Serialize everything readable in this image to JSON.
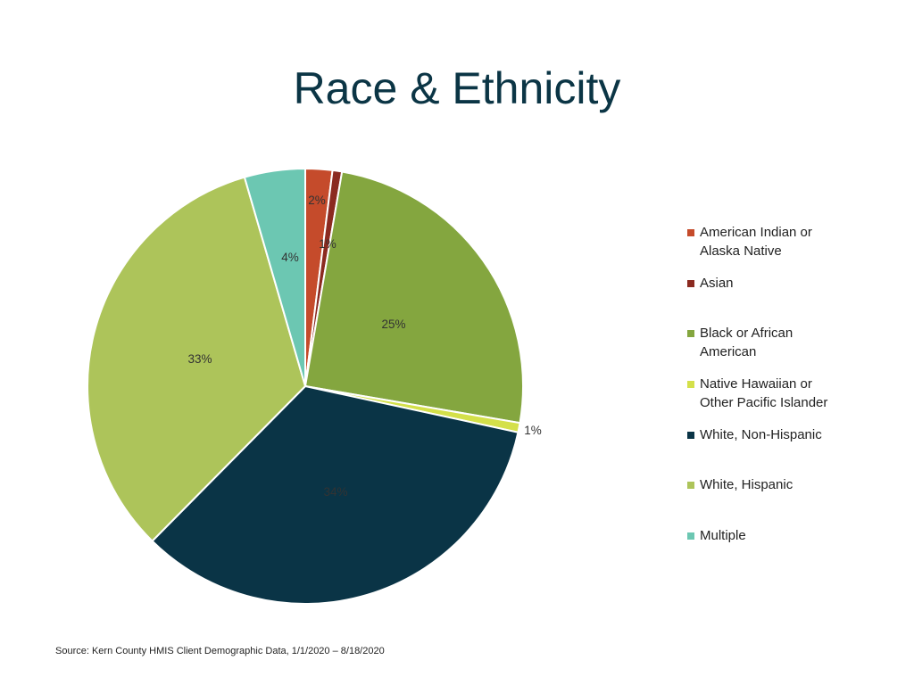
{
  "title": "Race & Ethnicity",
  "source": "Source: Kern County HMIS Client Demographic Data, 1/1/2020 – 8/18/2020",
  "chart_data": {
    "type": "pie",
    "title": "Race & Ethnicity",
    "legend_position": "right",
    "start_angle_deg": 0,
    "direction": "clockwise",
    "slices": [
      {
        "name": "American Indian or Alaska Native",
        "value": 2,
        "label": "2%",
        "color": "#c54b2b"
      },
      {
        "name": "Asian",
        "value": 0.7,
        "label": "1%",
        "color": "#8b2a20"
      },
      {
        "name": "Black or African American",
        "value": 25,
        "label": "25%",
        "color": "#84a63f"
      },
      {
        "name": "Native Hawaiian or Other Pacific Islander",
        "value": 0.7,
        "label": "1%",
        "color": "#d4e04a"
      },
      {
        "name": "White, Non-Hispanic",
        "value": 34,
        "label": "34%",
        "color": "#0a3446"
      },
      {
        "name": "White, Hispanic",
        "value": 33.1,
        "label": "33%",
        "color": "#adc45a"
      },
      {
        "name": "Multiple",
        "value": 4.5,
        "label": "4%",
        "color": "#6cc7b2"
      }
    ],
    "legend": [
      {
        "line1": "American Indian or",
        "line2": "Alaska Native"
      },
      {
        "line1": "Asian",
        "line2": ""
      },
      {
        "line1": "Black or African",
        "line2": "American"
      },
      {
        "line1": "Native Hawaiian or",
        "line2": "Other Pacific Islander"
      },
      {
        "line1": "White, Non-Hispanic",
        "line2": ""
      },
      {
        "line1": "White, Hispanic",
        "line2": ""
      },
      {
        "line1": "Multiple",
        "line2": ""
      }
    ]
  }
}
